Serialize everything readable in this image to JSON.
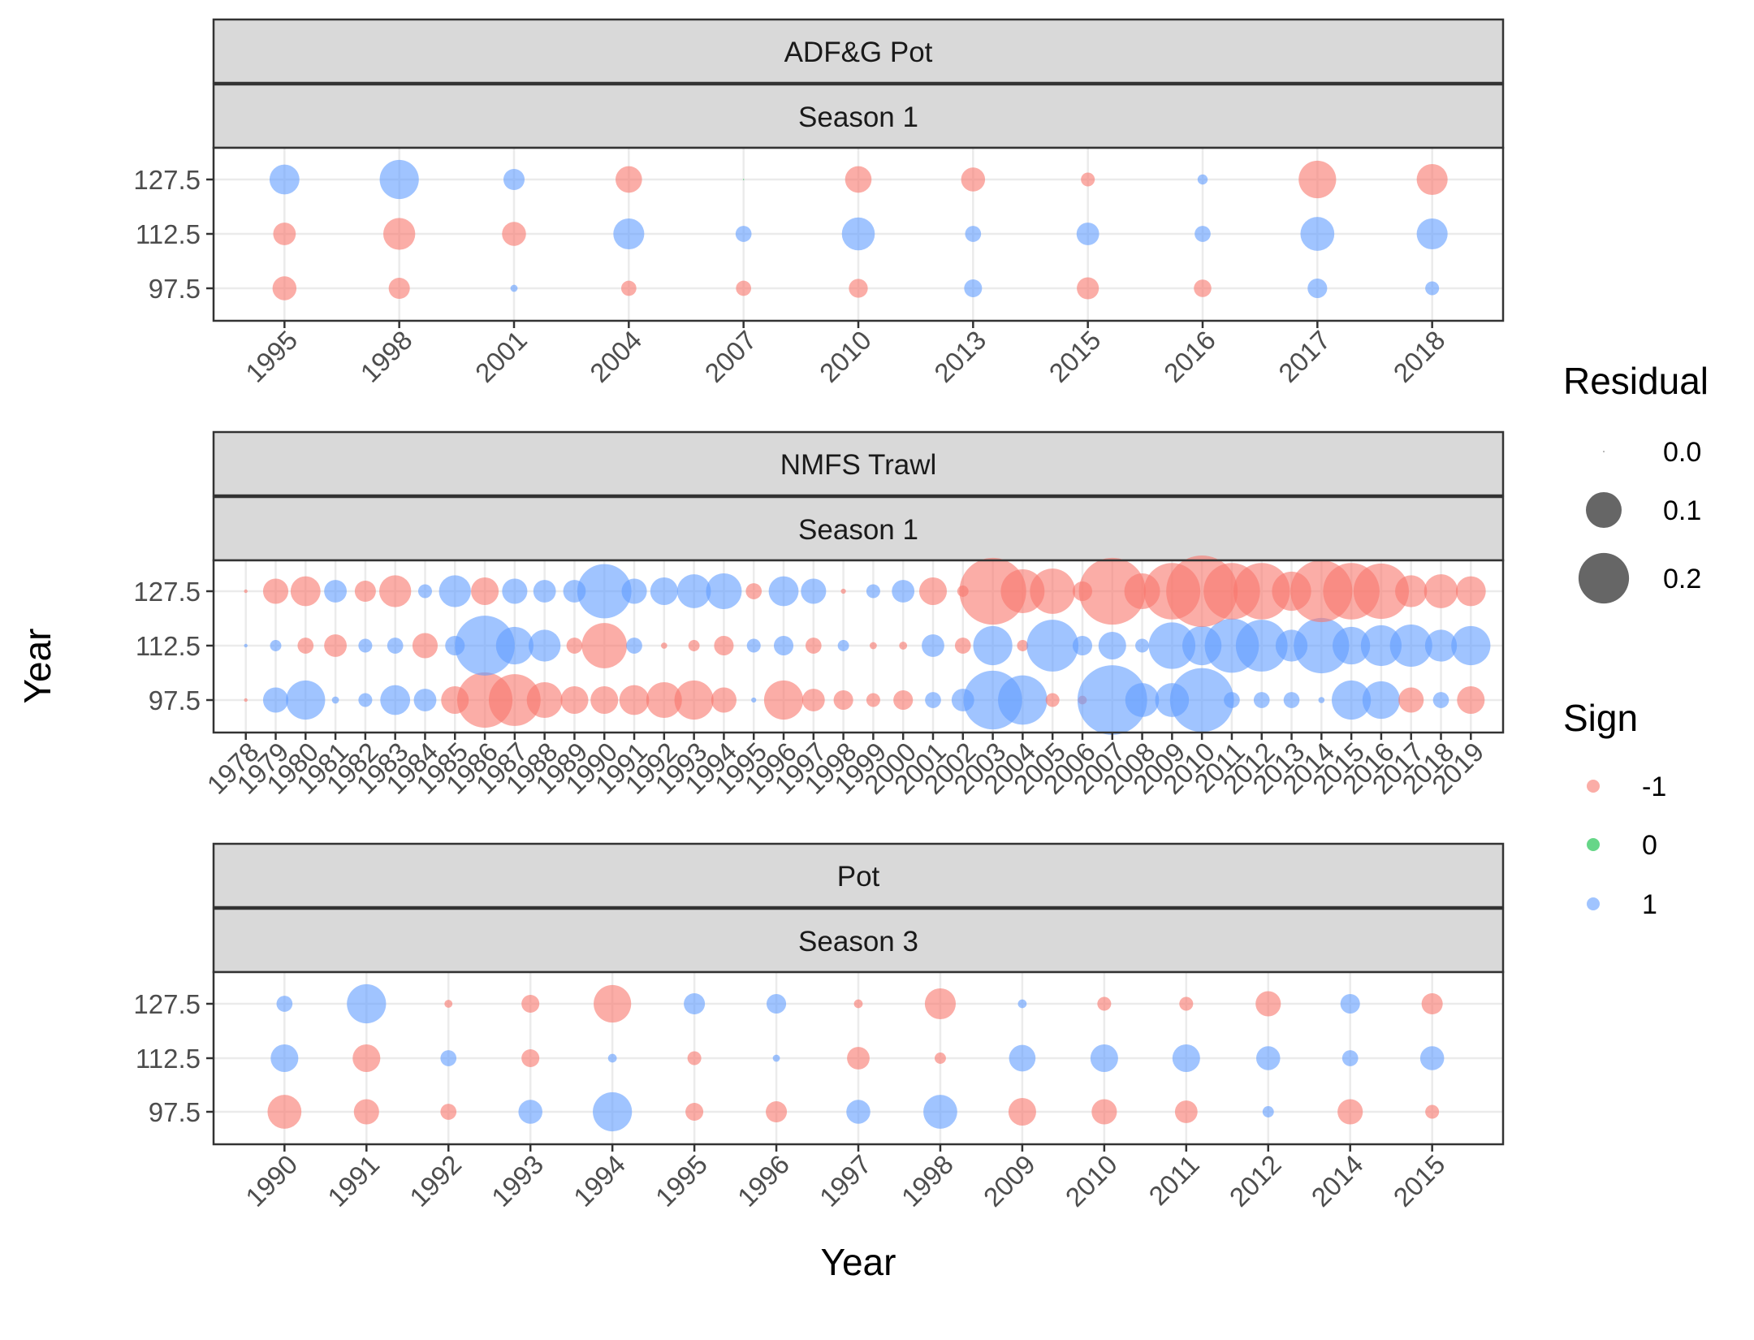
{
  "chart_data": {
    "type": "scatter",
    "xlabel": "Year",
    "ylabel": "Year",
    "y_categories": [
      "97.5",
      "112.5",
      "127.5"
    ],
    "colors": {
      "-1": "#F8766D",
      "0": "#00BA38",
      "1": "#619CFF"
    },
    "legend": {
      "position": "right",
      "size_title": "Residual",
      "size_entries": [
        {
          "label": "0.0",
          "value": 0.0
        },
        {
          "label": "0.1",
          "value": 0.1
        },
        {
          "label": "0.2",
          "value": 0.2
        }
      ],
      "sign_title": "Sign",
      "sign_entries": [
        {
          "label": "-1",
          "sign": -1
        },
        {
          "label": "0",
          "sign": 0
        },
        {
          "label": "1",
          "sign": 1
        }
      ]
    },
    "panels": [
      {
        "strip": "ADF&G Pot",
        "season": "Season 1",
        "years": [
          "1995",
          "1998",
          "2001",
          "2004",
          "2007",
          "2010",
          "2013",
          "2015",
          "2016",
          "2017",
          "2018"
        ],
        "series": {
          "127.5": {
            "r": [
              0.07,
              0.12,
              0.035,
              0.055,
              0.0,
              0.055,
              0.045,
              0.015,
              0.008,
              0.11,
              0.075
            ],
            "s": [
              1,
              1,
              1,
              -1,
              0,
              -1,
              -1,
              -1,
              1,
              -1,
              -1
            ]
          },
          "112.5": {
            "r": [
              0.04,
              0.08,
              0.045,
              0.075,
              0.02,
              0.085,
              0.02,
              0.04,
              0.02,
              0.09,
              0.075
            ],
            "s": [
              -1,
              -1,
              -1,
              1,
              1,
              1,
              1,
              1,
              1,
              1,
              1
            ]
          },
          "97.5": {
            "r": [
              0.045,
              0.035,
              0.004,
              0.018,
              0.018,
              0.028,
              0.025,
              0.038,
              0.024,
              0.03,
              0.015
            ],
            "s": [
              -1,
              -1,
              1,
              -1,
              -1,
              -1,
              1,
              -1,
              -1,
              1,
              1
            ]
          }
        }
      },
      {
        "strip": "NMFS Trawl",
        "season": "Season 1",
        "years": [
          "1978",
          "1979",
          "1980",
          "1981",
          "1982",
          "1983",
          "1984",
          "1985",
          "1986",
          "1987",
          "1988",
          "1989",
          "1990",
          "1991",
          "1992",
          "1993",
          "1994",
          "1995",
          "1996",
          "1997",
          "1998",
          "1999",
          "2000",
          "2001",
          "2002",
          "2003",
          "2004",
          "2005",
          "2006",
          "2007",
          "2008",
          "2009",
          "2010",
          "2011",
          "2012",
          "2013",
          "2014",
          "2015",
          "2016",
          "2017",
          "2018",
          "2019"
        ],
        "series": {
          "127.5": {
            "r": [
              0.001,
              0.05,
              0.07,
              0.04,
              0.035,
              0.08,
              0.015,
              0.08,
              0.06,
              0.05,
              0.04,
              0.04,
              0.23,
              0.05,
              0.06,
              0.09,
              0.1,
              0.02,
              0.07,
              0.05,
              0.002,
              0.015,
              0.04,
              0.06,
              0.01,
              0.35,
              0.15,
              0.16,
              0.03,
              0.35,
              0.1,
              0.25,
              0.4,
              0.25,
              0.25,
              0.12,
              0.3,
              0.25,
              0.24,
              0.08,
              0.09,
              0.07
            ],
            "s": [
              -1,
              -1,
              -1,
              1,
              -1,
              -1,
              1,
              1,
              -1,
              1,
              1,
              1,
              1,
              1,
              1,
              1,
              1,
              -1,
              1,
              1,
              -1,
              1,
              1,
              -1,
              -1,
              -1,
              -1,
              -1,
              -1,
              -1,
              -1,
              -1,
              -1,
              -1,
              -1,
              -1,
              -1,
              -1,
              -1,
              -1,
              -1,
              -1
            ]
          },
          "112.5": {
            "r": [
              0.001,
              0.01,
              0.02,
              0.04,
              0.015,
              0.02,
              0.05,
              0.03,
              0.28,
              0.11,
              0.08,
              0.02,
              0.16,
              0.02,
              0.003,
              0.01,
              0.03,
              0.015,
              0.03,
              0.02,
              0.01,
              0.004,
              0.005,
              0.04,
              0.02,
              0.12,
              0.01,
              0.21,
              0.03,
              0.06,
              0.015,
              0.17,
              0.12,
              0.23,
              0.21,
              0.08,
              0.24,
              0.11,
              0.13,
              0.14,
              0.08,
              0.12
            ],
            "s": [
              1,
              1,
              -1,
              -1,
              1,
              1,
              -1,
              1,
              1,
              1,
              1,
              -1,
              -1,
              1,
              -1,
              -1,
              -1,
              1,
              1,
              -1,
              1,
              -1,
              -1,
              1,
              -1,
              1,
              -1,
              1,
              1,
              1,
              1,
              1,
              1,
              1,
              1,
              1,
              1,
              1,
              1,
              1,
              1,
              1
            ]
          },
          "97.5": {
            "r": [
              0.001,
              0.05,
              0.12,
              0.004,
              0.015,
              0.07,
              0.04,
              0.06,
              0.24,
              0.21,
              0.1,
              0.06,
              0.06,
              0.07,
              0.1,
              0.12,
              0.05,
              0.002,
              0.12,
              0.04,
              0.03,
              0.015,
              0.03,
              0.02,
              0.04,
              0.27,
              0.19,
              0.015,
              0.006,
              0.38,
              0.09,
              0.09,
              0.32,
              0.02,
              0.02,
              0.02,
              0.003,
              0.12,
              0.11,
              0.05,
              0.02,
              0.06
            ],
            "s": [
              -1,
              1,
              1,
              1,
              1,
              1,
              1,
              -1,
              -1,
              -1,
              -1,
              -1,
              -1,
              -1,
              -1,
              -1,
              -1,
              1,
              -1,
              -1,
              -1,
              -1,
              -1,
              1,
              1,
              1,
              1,
              -1,
              -1,
              1,
              1,
              1,
              1,
              1,
              1,
              1,
              1,
              1,
              1,
              -1,
              1,
              -1
            ]
          }
        }
      },
      {
        "strip": "Pot",
        "season": "Season 3",
        "years": [
          "1990",
          "1991",
          "1992",
          "1993",
          "1994",
          "1995",
          "1996",
          "1997",
          "1998",
          "2009",
          "2010",
          "2011",
          "2012",
          "2014",
          "2015"
        ],
        "series": {
          "127.5": {
            "r": [
              0.02,
              0.12,
              0.005,
              0.025,
              0.11,
              0.035,
              0.03,
              0.006,
              0.075,
              0.006,
              0.015,
              0.015,
              0.05,
              0.03,
              0.035
            ],
            "s": [
              1,
              1,
              -1,
              -1,
              -1,
              1,
              1,
              -1,
              -1,
              1,
              -1,
              -1,
              -1,
              1,
              -1
            ]
          },
          "112.5": {
            "r": [
              0.06,
              0.06,
              0.02,
              0.025,
              0.006,
              0.015,
              0.004,
              0.04,
              0.01,
              0.055,
              0.06,
              0.06,
              0.045,
              0.02,
              0.045
            ],
            "s": [
              1,
              -1,
              1,
              -1,
              1,
              -1,
              1,
              -1,
              -1,
              1,
              1,
              1,
              1,
              1,
              1
            ]
          },
          "97.5": {
            "r": [
              0.09,
              0.05,
              0.02,
              0.045,
              0.12,
              0.025,
              0.035,
              0.045,
              0.09,
              0.06,
              0.05,
              0.04,
              0.01,
              0.05,
              0.015
            ],
            "s": [
              -1,
              -1,
              -1,
              1,
              1,
              -1,
              -1,
              1,
              1,
              -1,
              -1,
              -1,
              1,
              -1,
              -1
            ]
          }
        }
      }
    ]
  }
}
